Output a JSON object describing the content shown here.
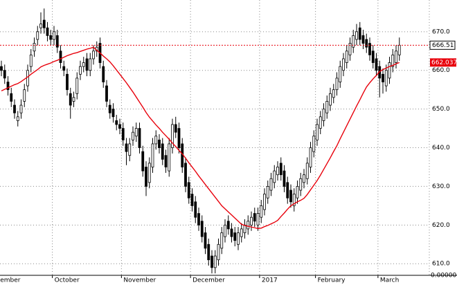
{
  "chart_data": {
    "type": "candlestick",
    "open": [
      661,
      660,
      657,
      654,
      651,
      647,
      649,
      652,
      656,
      661,
      665,
      668,
      671,
      673,
      671,
      669,
      668,
      669,
      665,
      661,
      659,
      654,
      652,
      654,
      659,
      661,
      663,
      660,
      663,
      665,
      667,
      661,
      656,
      651,
      650,
      647,
      646,
      645,
      641,
      638,
      642,
      643,
      645,
      639,
      635,
      631,
      635,
      641,
      642,
      641,
      638,
      634,
      640,
      646,
      645,
      641,
      636,
      631,
      628,
      626,
      623,
      621,
      618,
      615,
      612,
      609,
      611,
      614,
      617,
      621,
      619,
      618,
      615,
      617,
      618,
      619,
      620,
      623,
      620,
      622,
      624,
      627,
      629,
      631,
      633,
      636,
      634,
      631,
      629,
      625,
      627,
      629,
      631,
      632,
      635,
      639,
      642,
      645,
      647,
      649,
      651,
      653,
      655,
      657,
      660,
      662,
      664,
      666,
      668,
      671,
      669,
      668,
      667,
      665,
      663,
      661,
      659,
      656,
      658,
      661,
      662,
      664
    ],
    "high": [
      662.5,
      661.5,
      658.5,
      655.5,
      652.5,
      649.5,
      652.5,
      656.5,
      661.5,
      665.5,
      668.5,
      671.5,
      675,
      676,
      672.5,
      670.5,
      671.5,
      670.5,
      666.5,
      662.5,
      660.5,
      655.5,
      654.5,
      659.5,
      662.5,
      663.5,
      664.5,
      664.5,
      666.5,
      667.5,
      668.5,
      662.5,
      657.5,
      652.5,
      651.5,
      648.5,
      647.5,
      646.5,
      642.5,
      642.5,
      645.5,
      646.5,
      646.5,
      640.5,
      636.5,
      637.5,
      642.5,
      644.5,
      643.5,
      642.5,
      639.5,
      642.5,
      647.5,
      648,
      646.5,
      642.5,
      637.5,
      632.5,
      629.5,
      627.5,
      624.5,
      622.5,
      619.5,
      616.5,
      613.5,
      613.5,
      616.5,
      619.5,
      621.5,
      622.5,
      620.5,
      619.5,
      619.5,
      620.5,
      621.5,
      622.5,
      623.5,
      624.5,
      624.5,
      626.5,
      629.5,
      631.5,
      633.5,
      635.5,
      636.5,
      637.5,
      635.5,
      632.5,
      630.5,
      629.5,
      631.5,
      633.5,
      634.5,
      637.5,
      641.5,
      644.5,
      647.5,
      649.5,
      651.5,
      653.5,
      655.5,
      656.5,
      659.5,
      662.5,
      664.5,
      666.5,
      668.5,
      670.5,
      672,
      672.5,
      670.5,
      669.5,
      668.5,
      666.5,
      664.5,
      662.5,
      660.5,
      661.5,
      663.5,
      665.5,
      666.5,
      668.5
    ],
    "low": [
      658.5,
      656.5,
      653.5,
      650.5,
      647.5,
      645.5,
      647.5,
      650.5,
      654.5,
      659.5,
      663.5,
      666.5,
      669.5,
      669.5,
      667.5,
      666.5,
      666.5,
      664.5,
      660.5,
      658.5,
      653.5,
      647.5,
      650.5,
      652.5,
      657.5,
      659.5,
      658.5,
      658.5,
      661.5,
      663.5,
      660.5,
      655.5,
      650.5,
      647.5,
      646.5,
      644.5,
      643.5,
      640.5,
      635.5,
      636.5,
      640.5,
      641.5,
      638.5,
      632.5,
      627.5,
      629.5,
      633.5,
      639.5,
      638.5,
      635.5,
      633.5,
      632.5,
      638.5,
      642.5,
      638.5,
      633.5,
      628.5,
      625.5,
      623.5,
      620.5,
      618.5,
      615.5,
      612.5,
      609.5,
      607.5,
      607.5,
      609.5,
      612.5,
      615.5,
      617.5,
      615.5,
      614.5,
      613.5,
      615.5,
      616.5,
      617.5,
      618.5,
      619.5,
      618.5,
      620.5,
      622.5,
      625.5,
      627.5,
      629.5,
      631.5,
      631.5,
      628.5,
      625.5,
      624.5,
      623.5,
      625.5,
      627.5,
      629.5,
      630.5,
      633.5,
      637.5,
      640.5,
      643.5,
      645.5,
      647.5,
      649.5,
      651.5,
      653.5,
      655.5,
      658.5,
      660.5,
      662.5,
      664.5,
      666.5,
      666.5,
      665.5,
      664.5,
      662.5,
      660.5,
      658.5,
      653,
      654,
      654.5,
      656.5,
      659.5,
      660.5,
      662.5
    ],
    "close": [
      660,
      658,
      655,
      652,
      649,
      648,
      651,
      655,
      660,
      664,
      667,
      670,
      672,
      671,
      669,
      668,
      670,
      666,
      662,
      660,
      655,
      651,
      653,
      658,
      661,
      662,
      660,
      663,
      665,
      666,
      662,
      657,
      652,
      649,
      648,
      646,
      645,
      642,
      639,
      641,
      644,
      645,
      640,
      634,
      630,
      636,
      641,
      643,
      640,
      637,
      635,
      641,
      646,
      644,
      640,
      635,
      630,
      627,
      625,
      622,
      620,
      617,
      614,
      611,
      609,
      612,
      615,
      618,
      620,
      619,
      617,
      616,
      618,
      619,
      620,
      621,
      622,
      621,
      623,
      625,
      628,
      630,
      632,
      634,
      635,
      633,
      630,
      627,
      626,
      628,
      630,
      632,
      633,
      636,
      640,
      643,
      646,
      648,
      650,
      652,
      654,
      655,
      658,
      661,
      663,
      665,
      667,
      669,
      670,
      668,
      667,
      666,
      664,
      662,
      660,
      658,
      657,
      660,
      662,
      664,
      665,
      666.51
    ],
    "moving_average": {
      "color": "#e8000b",
      "values": [
        654.7,
        655.1,
        655.5,
        655.9,
        656.3,
        656.6,
        657.1,
        657.7,
        658.3,
        659.0,
        659.6,
        660.2,
        660.9,
        661.3,
        661.6,
        661.9,
        662.3,
        662.6,
        663.0,
        663.4,
        663.8,
        664.1,
        664.4,
        664.6,
        664.9,
        665.2,
        665.5,
        665.7,
        666.0,
        665.2,
        664.5,
        663.7,
        663.0,
        662.2,
        661.2,
        660.1,
        659.0,
        657.9,
        656.8,
        655.6,
        654.4,
        653.1,
        651.8,
        650.5,
        649.1,
        647.9,
        646.9,
        645.9,
        645.0,
        644.0,
        643.1,
        642.2,
        641.2,
        640.3,
        639.3,
        638.4,
        637.3,
        636.1,
        635.0,
        633.9,
        632.7,
        631.6,
        630.5,
        629.4,
        628.3,
        627.2,
        626.1,
        625.0,
        624.2,
        623.4,
        622.6,
        621.8,
        621.0,
        620.2,
        619.9,
        619.7,
        619.5,
        619.3,
        619.1,
        619.2,
        619.6,
        619.9,
        620.3,
        620.7,
        621.2,
        622.2,
        623.1,
        624.1,
        625.0,
        625.5,
        626.0,
        626.4,
        626.9,
        627.9,
        629.1,
        630.3,
        631.5,
        632.9,
        634.4,
        635.9,
        637.4,
        639.0,
        640.5,
        642.3,
        644.0,
        645.7,
        647.4,
        649.1,
        650.8,
        652.4,
        654.1,
        655.7,
        656.8,
        657.8,
        658.7,
        659.7,
        660.2,
        660.6,
        661.0,
        661.3,
        661.7,
        662.037
      ]
    },
    "up_color": "#ffffff",
    "down_color": "#000000",
    "wick_color": "#000000",
    "last_price_line_color": "#e8000b",
    "ylim": [
      607,
      678.2
    ],
    "yticks": [
      {
        "value": 610,
        "label": "610.0"
      },
      {
        "value": 620,
        "label": "620.0"
      },
      {
        "value": 630,
        "label": "630.0"
      },
      {
        "value": 640,
        "label": "640.0"
      },
      {
        "value": 650,
        "label": "650.0"
      },
      {
        "value": 660,
        "label": "660.0"
      },
      {
        "value": 670,
        "label": "670.0"
      }
    ],
    "xticks": [
      {
        "value": -1,
        "label": "ember"
      },
      {
        "value": 15.5,
        "label": "October"
      },
      {
        "value": 36.5,
        "label": "November"
      },
      {
        "value": 57.5,
        "label": "December"
      },
      {
        "value": 78.5,
        "label": "2017"
      },
      {
        "value": 95.5,
        "label": "February"
      },
      {
        "value": 114.5,
        "label": "March"
      }
    ],
    "corner_label": "0.00000",
    "grid": true
  }
}
